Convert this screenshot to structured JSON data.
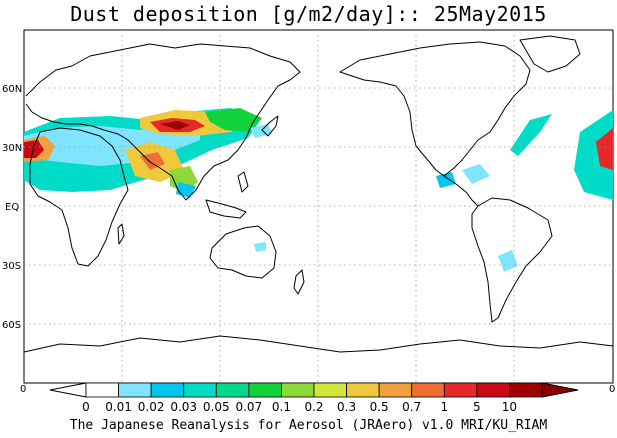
{
  "title": "Dust deposition [g/m2/day]:: 25May2015",
  "footer": "The Japanese Reanalysis for Aerosol (JRAero) v1.0 MRI/KU_RIAM",
  "map": {
    "latitude_labels": [
      "60N",
      "30N",
      "EQ",
      "30S",
      "60S"
    ],
    "edge_left": "0",
    "edge_right": "0"
  },
  "colorbar": {
    "tick_labels": [
      "0",
      "0.01",
      "0.02",
      "0.03",
      "0.05",
      "0.07",
      "0.1",
      "0.2",
      "0.3",
      "0.5",
      "0.7",
      "1",
      "5",
      "10"
    ],
    "colors": [
      "#ffffff",
      "#ffffff",
      "#7fe5ff",
      "#00c6f0",
      "#00dcc8",
      "#00d98c",
      "#12d23c",
      "#8ed83a",
      "#d2e63c",
      "#f0c83c",
      "#f0a03c",
      "#f06e32",
      "#e62828",
      "#c80a14",
      "#a00000",
      "#8c0000"
    ]
  }
}
